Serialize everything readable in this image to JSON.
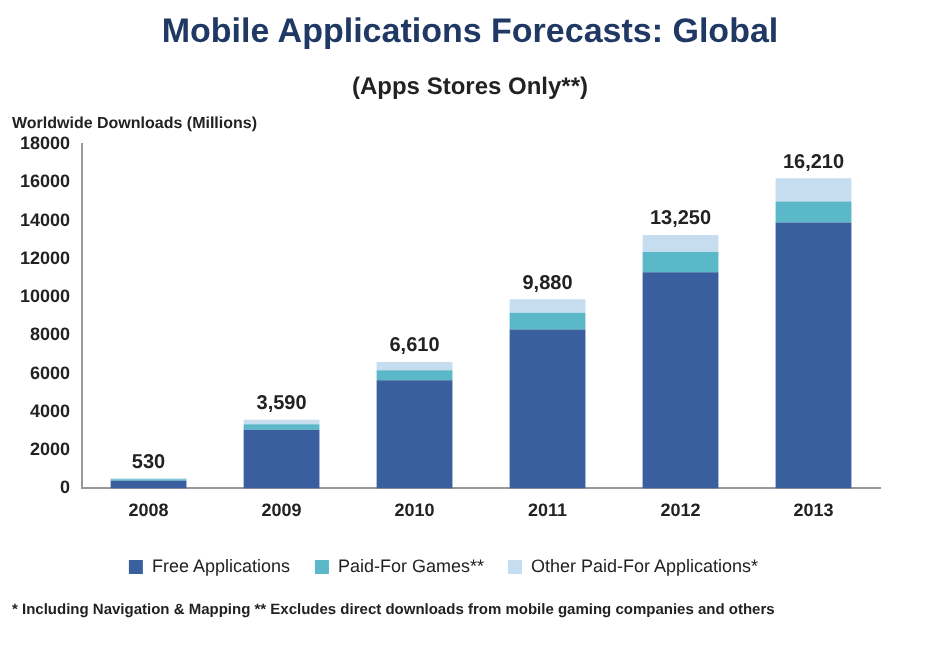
{
  "chart_data": {
    "type": "bar",
    "title": "Mobile Applications Forecasts: Global",
    "subtitle": "(Apps Stores Only**)",
    "ylabel": "Worldwide Downloads (Millions)",
    "categories": [
      "2008",
      "2009",
      "2010",
      "2011",
      "2012",
      "2013"
    ],
    "series": [
      {
        "name": "Free Applications",
        "color": "#3a5f9f",
        "values": [
          400,
          3070,
          5650,
          8300,
          11300,
          13900
        ]
      },
      {
        "name": "Paid-For Games**",
        "color": "#5bb8c8",
        "values": [
          80,
          280,
          530,
          880,
          1050,
          1100
        ]
      },
      {
        "name": "Other Paid-For Applications*",
        "color": "#c6dcef",
        "values": [
          50,
          240,
          430,
          700,
          900,
          1210
        ]
      }
    ],
    "stacked": true,
    "totals": [
      "530",
      "3,590",
      "6,610",
      "9,880",
      "13,250",
      "16,210"
    ],
    "ylim": [
      0,
      18000
    ],
    "yticks": [
      0,
      2000,
      4000,
      6000,
      8000,
      10000,
      12000,
      14000,
      16000,
      18000
    ],
    "grid": false,
    "legend": "bottom",
    "annotations": [
      "* Including Navigation & Mapping  ** Excludes direct downloads from mobile gaming companies and others"
    ]
  }
}
